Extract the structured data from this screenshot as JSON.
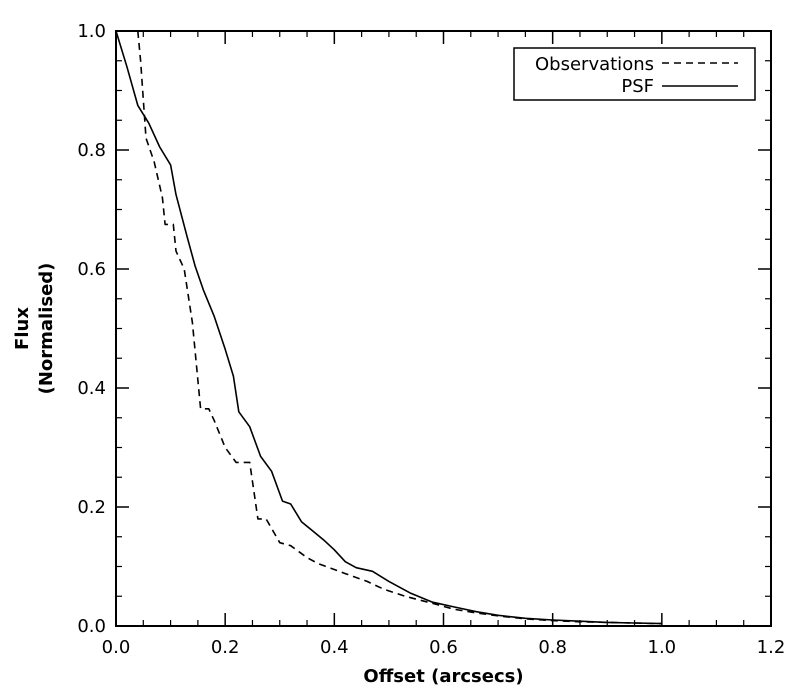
{
  "chart_data": {
    "type": "line",
    "title": "",
    "xlabel": "Offset (arcsecs)",
    "ylabel_lines": [
      "Flux",
      "(Normalised)"
    ],
    "xlim": [
      0.0,
      1.2
    ],
    "ylim": [
      0.0,
      1.0
    ],
    "xticks": [
      "0.0",
      "0.2",
      "0.4",
      "0.6",
      "0.8",
      "1.0",
      "1.2"
    ],
    "yticks": [
      "0.0",
      "0.2",
      "0.4",
      "0.6",
      "0.8",
      "1.0"
    ],
    "grid": false,
    "legend_position": "top-right",
    "series": [
      {
        "name": "Observations",
        "style": "dashed",
        "color": "#000000",
        "x": [
          0.04,
          0.045,
          0.055,
          0.07,
          0.085,
          0.09,
          0.105,
          0.11,
          0.125,
          0.14,
          0.155,
          0.17,
          0.18,
          0.2,
          0.22,
          0.23,
          0.245,
          0.26,
          0.275,
          0.3,
          0.32,
          0.35,
          0.37,
          0.42,
          0.46,
          0.49,
          0.53,
          0.58,
          0.62,
          0.66,
          0.7,
          0.75,
          0.8,
          0.85,
          0.9,
          0.95,
          1.0
        ],
        "y": [
          1.0,
          0.95,
          0.82,
          0.78,
          0.72,
          0.675,
          0.675,
          0.63,
          0.6,
          0.51,
          0.365,
          0.365,
          0.345,
          0.3,
          0.275,
          0.275,
          0.275,
          0.18,
          0.18,
          0.14,
          0.135,
          0.115,
          0.105,
          0.088,
          0.075,
          0.062,
          0.05,
          0.038,
          0.028,
          0.022,
          0.017,
          0.012,
          0.009,
          0.007,
          0.006,
          0.005,
          0.004
        ]
      },
      {
        "name": "PSF",
        "style": "solid",
        "color": "#000000",
        "x": [
          0.0,
          0.02,
          0.04,
          0.06,
          0.08,
          0.1,
          0.11,
          0.13,
          0.145,
          0.16,
          0.18,
          0.2,
          0.215,
          0.225,
          0.245,
          0.265,
          0.285,
          0.305,
          0.32,
          0.34,
          0.36,
          0.38,
          0.4,
          0.42,
          0.44,
          0.47,
          0.5,
          0.54,
          0.58,
          0.62,
          0.66,
          0.7,
          0.75,
          0.8,
          0.85,
          0.9,
          0.95,
          1.0
        ],
        "y": [
          1.0,
          0.94,
          0.875,
          0.845,
          0.805,
          0.775,
          0.725,
          0.655,
          0.605,
          0.565,
          0.52,
          0.465,
          0.42,
          0.36,
          0.335,
          0.285,
          0.26,
          0.21,
          0.205,
          0.175,
          0.16,
          0.145,
          0.128,
          0.108,
          0.098,
          0.092,
          0.075,
          0.055,
          0.04,
          0.032,
          0.024,
          0.018,
          0.013,
          0.01,
          0.008,
          0.006,
          0.005,
          0.004
        ]
      }
    ]
  }
}
